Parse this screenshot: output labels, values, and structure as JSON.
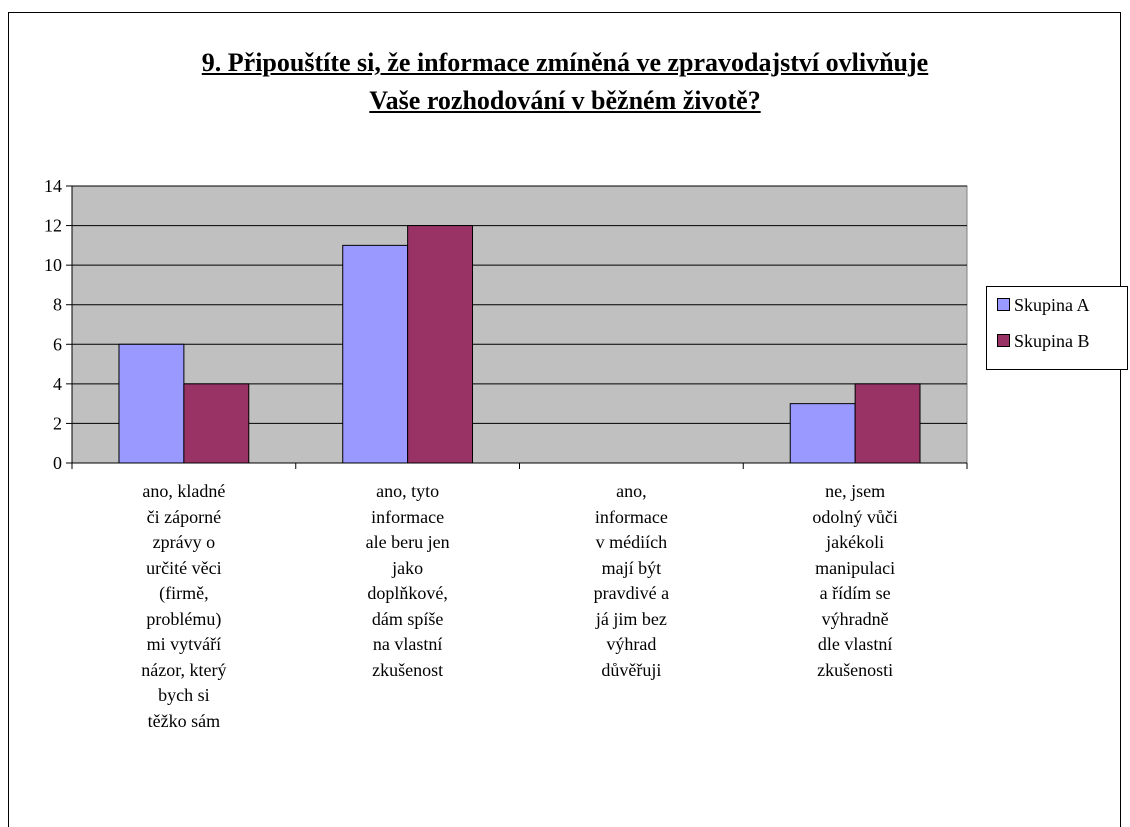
{
  "chart_data": {
    "type": "bar",
    "title": "9. Připouštíte si, že informace zmíněná ve zpravodajství ovlivňuje Vaše rozhodování v běžném životě?",
    "title_lines": [
      "9. Připouštíte si, že informace zmíněná ve zpravodajství ovlivňuje",
      "Vaše rozhodování v běžném životě?"
    ],
    "categories": [
      [
        "ano, kladné",
        "či záporné",
        "zprávy o",
        "určité věci",
        "(firmě,",
        "problému)",
        "mi vytváří",
        "názor, který",
        "bych si",
        "těžko sám"
      ],
      [
        "ano, tyto",
        "informace",
        "ale beru jen",
        "jako",
        "doplňkové,",
        "dám spíše",
        "na vlastní",
        "zkušenost"
      ],
      [
        "ano,",
        "informace",
        "v médiích",
        "mají být",
        "pravdivé a",
        "já jim bez",
        "výhrad",
        "důvěřuji"
      ],
      [
        "ne, jsem",
        "odolný vůči",
        "jakékoli",
        "manipulaci",
        "a řídím se",
        "výhradně",
        "dle vlastní",
        "zkušenosti"
      ]
    ],
    "series": [
      {
        "name": "Skupina A",
        "color": "#9999ff",
        "values": [
          6,
          11,
          0,
          3
        ]
      },
      {
        "name": "Skupina B",
        "color": "#993366",
        "values": [
          4,
          12,
          0,
          4
        ]
      }
    ],
    "ylim": [
      0,
      14
    ],
    "yticks": [
      0,
      2,
      4,
      6,
      8,
      10,
      12,
      14
    ],
    "plot_background": "#c0c0c0",
    "grid": true,
    "legend_position": "right"
  }
}
